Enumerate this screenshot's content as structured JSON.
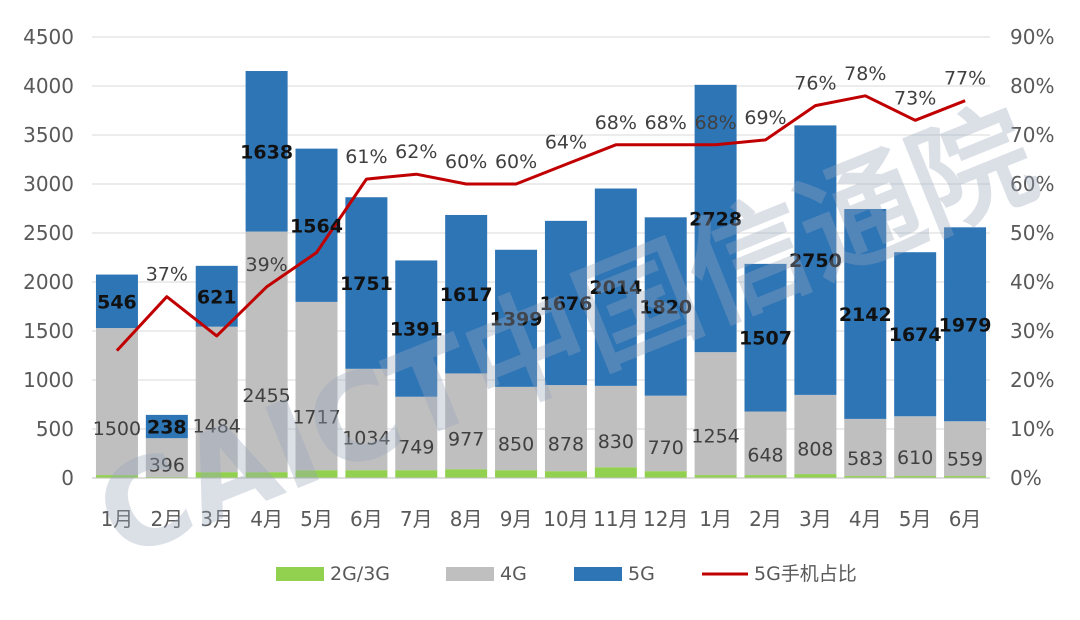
{
  "chart_data": {
    "type": "bar",
    "stacked": true,
    "categories": [
      "1月",
      "2月",
      "3月",
      "4月",
      "5月",
      "6月",
      "7月",
      "8月",
      "9月",
      "10月",
      "11月",
      "12月",
      "1月",
      "2月",
      "3月",
      "4月",
      "5月",
      "6月"
    ],
    "series": [
      {
        "name": "2G/3G",
        "color": "#92d050",
        "values": [
          30,
          10,
          60,
          60,
          80,
          80,
          80,
          90,
          80,
          70,
          110,
          70,
          30,
          30,
          40,
          20,
          20,
          20
        ]
      },
      {
        "name": "4G",
        "color": "#bfbfbf",
        "values": [
          1500,
          396,
          1484,
          2455,
          1717,
          1034,
          749,
          977,
          850,
          878,
          830,
          770,
          1254,
          648,
          808,
          583,
          610,
          559
        ]
      },
      {
        "name": "5G",
        "color": "#2e75b6",
        "values": [
          546,
          238,
          621,
          1638,
          1564,
          1751,
          1391,
          1617,
          1399,
          1676,
          2014,
          1820,
          2728,
          1507,
          2750,
          2142,
          1674,
          1979
        ]
      }
    ],
    "line_series": {
      "name": "5G手机占比",
      "color": "#c00000",
      "axis": "right",
      "values": [
        26,
        37,
        29,
        39,
        46,
        61,
        62,
        60,
        60,
        64,
        68,
        68,
        68,
        69,
        76,
        78,
        73,
        77
      ],
      "labels": [
        "",
        "37%",
        "",
        "39%",
        "",
        "61%",
        "62%",
        "60%",
        "60%",
        "64%",
        "68%",
        "68%",
        "68%",
        "69%",
        "76%",
        "78%",
        "73%",
        "77%"
      ]
    },
    "y_left": {
      "min": 0,
      "max": 4500,
      "ticks": [
        "0",
        "500",
        "1000",
        "1500",
        "2000",
        "2500",
        "3000",
        "3500",
        "4000",
        "4500"
      ]
    },
    "y_right": {
      "min": 0,
      "max": 90,
      "ticks": [
        "0%",
        "10%",
        "20%",
        "30%",
        "40%",
        "50%",
        "60%",
        "70%",
        "80%",
        "90%"
      ]
    },
    "grid": true,
    "legend": "bottom",
    "watermark": "CAICT中国信通院"
  }
}
